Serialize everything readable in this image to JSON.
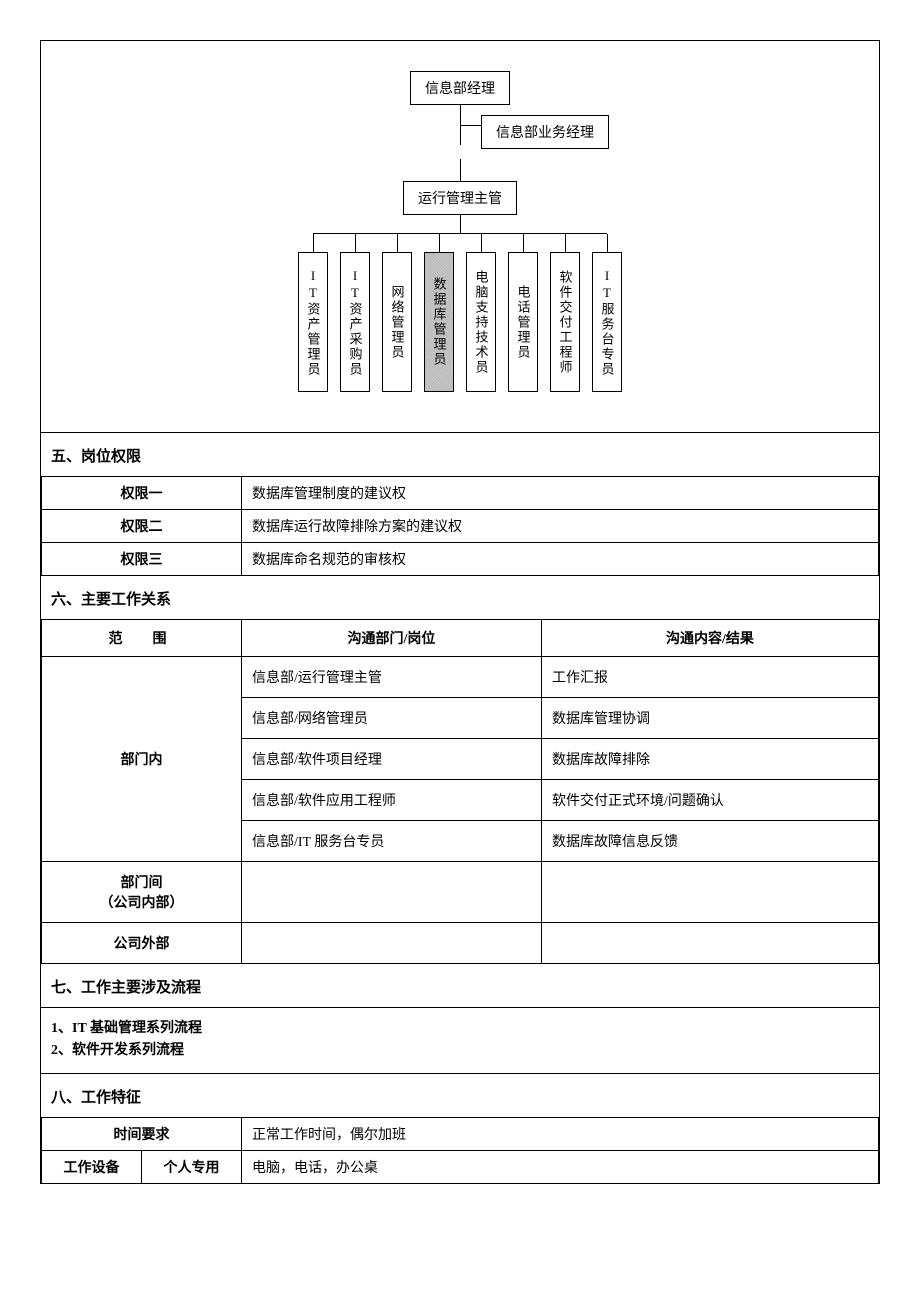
{
  "org_chart": {
    "top": "信息部经理",
    "level2": "信息部业务经理",
    "level3": "运行管理主管",
    "leaves": [
      {
        "label": "IT资产管理员",
        "highlighted": false
      },
      {
        "label": "IT资产采购员",
        "highlighted": false
      },
      {
        "label": "网络管理员",
        "highlighted": false
      },
      {
        "label": "数据库管理员",
        "highlighted": true
      },
      {
        "label": "电脑支持技术员",
        "highlighted": false
      },
      {
        "label": "电话管理员",
        "highlighted": false
      },
      {
        "label": "软件交付工程师",
        "highlighted": false
      },
      {
        "label": "IT服务台专员",
        "highlighted": false
      }
    ]
  },
  "section5": {
    "title": "五、岗位权限",
    "rows": [
      {
        "label": "权限一",
        "value": "数据库管理制度的建议权"
      },
      {
        "label": "权限二",
        "value": "数据库运行故障排除方案的建议权"
      },
      {
        "label": "权限三",
        "value": "数据库命名规范的审核权"
      }
    ]
  },
  "section6": {
    "title": "六、主要工作关系",
    "headers": {
      "scope": "范　围",
      "dept": "沟通部门/岗位",
      "result": "沟通内容/结果"
    },
    "internal_label": "部门内",
    "internal_rows": [
      {
        "dept": "信息部/运行管理主管",
        "result": "工作汇报"
      },
      {
        "dept": "信息部/网络管理员",
        "result": "数据库管理协调"
      },
      {
        "dept": "信息部/软件项目经理",
        "result": "数据库故障排除"
      },
      {
        "dept": "信息部/软件应用工程师",
        "result": "软件交付正式环境/问题确认"
      },
      {
        "dept": "信息部/IT 服务台专员",
        "result": "数据库故障信息反馈"
      }
    ],
    "between_label_1": "部门间",
    "between_label_2": "（公司内部）",
    "external_label": "公司外部"
  },
  "section7": {
    "title": "七、工作主要涉及流程",
    "items": [
      "1、IT 基础管理系列流程",
      "2、软件开发系列流程"
    ]
  },
  "section8": {
    "title": "八、工作特征",
    "rows": [
      {
        "label": "时间要求",
        "sublabel": "",
        "colspan": 2,
        "value": "正常工作时间，偶尔加班"
      },
      {
        "label": "工作设备",
        "sublabel": "个人专用",
        "colspan": 1,
        "value": "电脑，电话，办公桌"
      }
    ]
  }
}
